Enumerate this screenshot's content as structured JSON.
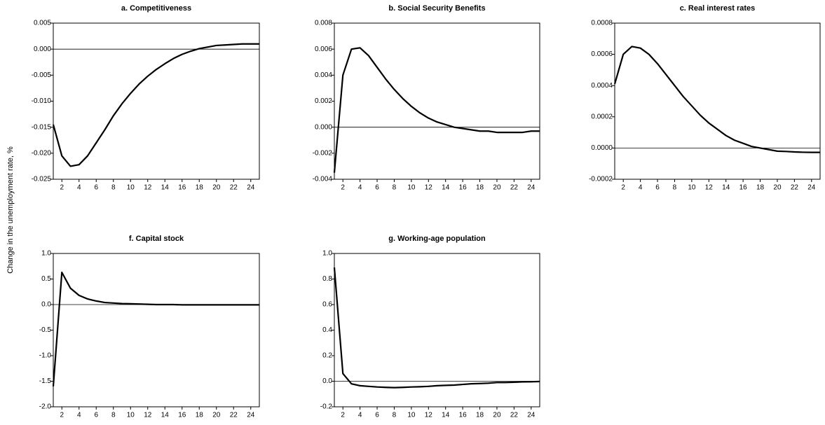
{
  "y_label": "Change in the unemployment rate, %",
  "chart_data": [
    {
      "type": "line",
      "title": "a. Competitiveness",
      "x": [
        1,
        2,
        3,
        4,
        5,
        6,
        7,
        8,
        9,
        10,
        11,
        12,
        13,
        14,
        15,
        16,
        17,
        18,
        19,
        20,
        21,
        22,
        23,
        24,
        25
      ],
      "values": [
        -0.0145,
        -0.0205,
        -0.0225,
        -0.0222,
        -0.0205,
        -0.018,
        -0.0155,
        -0.0128,
        -0.0105,
        -0.0085,
        -0.0067,
        -0.0052,
        -0.0039,
        -0.0028,
        -0.0018,
        -0.001,
        -0.0004,
        0.0001,
        0.0004,
        0.0007,
        0.0008,
        0.0009,
        0.001,
        0.001,
        0.001
      ],
      "color": "#000000",
      "xlim": [
        1,
        25
      ],
      "xticks": [
        2,
        4,
        6,
        8,
        10,
        12,
        14,
        16,
        18,
        20,
        22,
        24
      ],
      "ylim": [
        -0.025,
        0.005
      ],
      "yticks": [
        -0.025,
        {
          "value": -0.02,
          "label": "-0.020"
        },
        -0.015,
        {
          "value": -0.01,
          "label": "-0.010"
        },
        -0.005,
        {
          "value": 0,
          "label": "0.000"
        },
        0.005
      ],
      "zero_line": true
    },
    {
      "type": "line",
      "title": "b. Social Security Benefits",
      "x": [
        1,
        2,
        3,
        4,
        5,
        6,
        7,
        8,
        9,
        10,
        11,
        12,
        13,
        14,
        15,
        16,
        17,
        18,
        19,
        20,
        21,
        22,
        23,
        24,
        25
      ],
      "values": [
        -0.0035,
        0.004,
        0.006,
        0.0061,
        0.0055,
        0.0046,
        0.0037,
        0.0029,
        0.0022,
        0.0016,
        0.0011,
        0.0007,
        0.0004,
        0.0002,
        0.0,
        -0.0001,
        -0.0002,
        -0.0003,
        -0.0003,
        -0.0004,
        -0.0004,
        -0.0004,
        -0.0004,
        -0.0003,
        -0.0003
      ],
      "color": "#000000",
      "xlim": [
        1,
        25
      ],
      "xticks": [
        2,
        4,
        6,
        8,
        10,
        12,
        14,
        16,
        18,
        20,
        22,
        24
      ],
      "ylim": [
        -0.004,
        0.008
      ],
      "yticks": [
        -0.004,
        -0.002,
        {
          "value": 0,
          "label": "0.000"
        },
        0.002,
        0.004,
        0.006,
        0.008
      ],
      "zero_line": true
    },
    {
      "type": "line",
      "title": "c. Real interest rates",
      "x": [
        1,
        2,
        3,
        4,
        5,
        6,
        7,
        8,
        9,
        10,
        11,
        12,
        13,
        14,
        15,
        16,
        17,
        18,
        19,
        20,
        21,
        22,
        23,
        24,
        25
      ],
      "values": [
        0.00041,
        0.0006,
        0.00065,
        0.00064,
        0.0006,
        0.00054,
        0.00047,
        0.0004,
        0.00033,
        0.00027,
        0.00021,
        0.00016,
        0.00012,
        8e-05,
        5e-05,
        3e-05,
        1e-05,
        0,
        -1e-05,
        -2e-05,
        -2.2e-05,
        -2.5e-05,
        -2.7e-05,
        -2.8e-05,
        -2.8e-05
      ],
      "color": "#000000",
      "xlim": [
        1,
        25
      ],
      "xticks": [
        2,
        4,
        6,
        8,
        10,
        12,
        14,
        16,
        18,
        20,
        22,
        24
      ],
      "ylim": [
        -0.0002,
        0.0008
      ],
      "yticks": [
        -0.0002,
        {
          "value": 0,
          "label": "0.0000"
        },
        0.0002,
        0.0004,
        0.0006,
        0.0008
      ],
      "zero_line": true
    },
    {
      "type": "line",
      "title": "f. Capital stock",
      "x": [
        1,
        2,
        3,
        4,
        5,
        6,
        7,
        8,
        9,
        10,
        11,
        12,
        13,
        14,
        15,
        16,
        17,
        18,
        19,
        20,
        21,
        22,
        23,
        24,
        25
      ],
      "values": [
        -1.6,
        0.63,
        0.32,
        0.18,
        0.11,
        0.07,
        0.04,
        0.03,
        0.02,
        0.015,
        0.01,
        0.005,
        0,
        0,
        0,
        -0.005,
        -0.005,
        -0.005,
        -0.005,
        -0.005,
        -0.005,
        -0.005,
        -0.005,
        -0.005,
        -0.005
      ],
      "color": "#000000",
      "xlim": [
        1,
        25
      ],
      "xticks": [
        2,
        4,
        6,
        8,
        10,
        12,
        14,
        16,
        18,
        20,
        22,
        24
      ],
      "ylim": [
        -2.0,
        1.0
      ],
      "yticks": [
        {
          "value": -2,
          "label": "-2.0"
        },
        -1.5,
        {
          "value": -1,
          "label": "-1.0"
        },
        -0.5,
        {
          "value": 0,
          "label": "0.0"
        },
        0.5,
        {
          "value": 1,
          "label": "1.0"
        }
      ],
      "zero_line": true
    },
    {
      "type": "line",
      "title": "g. Working-age population",
      "x": [
        1,
        2,
        3,
        4,
        5,
        6,
        7,
        8,
        9,
        10,
        11,
        12,
        13,
        14,
        15,
        16,
        17,
        18,
        19,
        20,
        21,
        22,
        23,
        24,
        25
      ],
      "values": [
        0.89,
        0.06,
        -0.02,
        -0.035,
        -0.04,
        -0.045,
        -0.048,
        -0.05,
        -0.048,
        -0.045,
        -0.043,
        -0.04,
        -0.035,
        -0.032,
        -0.03,
        -0.025,
        -0.02,
        -0.018,
        -0.015,
        -0.01,
        -0.01,
        -0.008,
        -0.005,
        -0.004,
        -0.002
      ],
      "color": "#000000",
      "xlim": [
        1,
        25
      ],
      "xticks": [
        2,
        4,
        6,
        8,
        10,
        12,
        14,
        16,
        18,
        20,
        22,
        24
      ],
      "ylim": [
        -0.2,
        1.0
      ],
      "yticks": [
        -0.2,
        {
          "value": 0,
          "label": "0.0"
        },
        0.2,
        0.4,
        0.6,
        0.8,
        {
          "value": 1,
          "label": "1.0"
        }
      ],
      "zero_line": true
    }
  ]
}
